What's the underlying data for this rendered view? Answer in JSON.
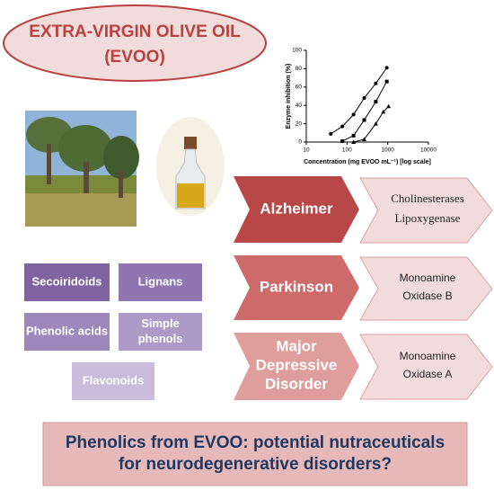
{
  "header": {
    "title": [
      "EXTRA-VIRGIN OLIVE OIL",
      "(EVOO)"
    ]
  },
  "chart": {
    "type": "line",
    "x_label": "Concentration (mg EVOO mL⁻¹) [log scale]",
    "y_label": "Enzyme inhibition (%)",
    "log_x": true,
    "xlim": [
      10,
      10000
    ],
    "xticks": [
      10,
      100,
      1000,
      10000
    ],
    "ylim": [
      0,
      100
    ],
    "yticks": [
      0,
      20,
      40,
      60,
      80,
      100
    ],
    "series": [
      {
        "color": "#000000",
        "marker": "circle",
        "x": [
          40,
          77,
          145,
          265,
          510,
          950
        ],
        "values": [
          9,
          17,
          30,
          48,
          64,
          81
        ]
      },
      {
        "color": "#000000",
        "marker": "square",
        "x": [
          77,
          145,
          265,
          510,
          950
        ],
        "values": [
          1,
          7,
          24,
          44,
          66
        ]
      },
      {
        "color": "#000000",
        "marker": "triangle",
        "x": [
          145,
          265,
          510,
          780,
          1050
        ],
        "values": [
          0,
          3,
          20,
          33,
          39
        ]
      }
    ]
  },
  "compounds": [
    {
      "label": [
        "Secoiridoids"
      ]
    },
    {
      "label": [
        "Lignans"
      ]
    },
    {
      "label": [
        "Phenolic acids"
      ]
    },
    {
      "label": [
        "Simple",
        "phenols"
      ]
    },
    {
      "label": [
        "Flavonoids"
      ]
    }
  ],
  "diseases": [
    {
      "name": [
        "Alzheimer"
      ],
      "targets": [
        "Cholinesterases",
        "Lipoxygenase"
      ]
    },
    {
      "name": [
        "Parkinson"
      ],
      "targets": [
        "Monoamine",
        "Oxidase B"
      ]
    },
    {
      "name": [
        "Major",
        "Depressive",
        "Disorder"
      ],
      "targets": [
        "Monoamine",
        "Oxidase A"
      ]
    }
  ],
  "footer": {
    "text": [
      "Phenolics from EVOO: potential nutraceuticals",
      "for neurodegenerative disorders?"
    ]
  }
}
